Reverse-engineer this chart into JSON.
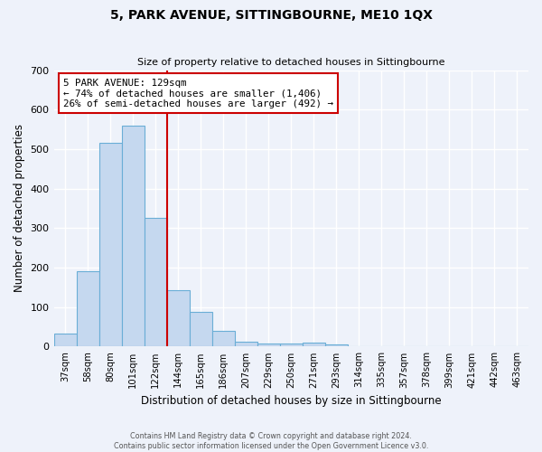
{
  "title": "5, PARK AVENUE, SITTINGBOURNE, ME10 1QX",
  "subtitle": "Size of property relative to detached houses in Sittingbourne",
  "xlabel": "Distribution of detached houses by size in Sittingbourne",
  "ylabel": "Number of detached properties",
  "categories": [
    "37sqm",
    "58sqm",
    "80sqm",
    "101sqm",
    "122sqm",
    "144sqm",
    "165sqm",
    "186sqm",
    "207sqm",
    "229sqm",
    "250sqm",
    "271sqm",
    "293sqm",
    "314sqm",
    "335sqm",
    "357sqm",
    "378sqm",
    "399sqm",
    "421sqm",
    "442sqm",
    "463sqm"
  ],
  "values": [
    32,
    192,
    515,
    560,
    325,
    143,
    87,
    40,
    13,
    7,
    7,
    10,
    5,
    0,
    0,
    0,
    0,
    0,
    0,
    0,
    0
  ],
  "bar_color": "#c5d8ef",
  "bar_edge_color": "#6aaed6",
  "bar_width": 1.0,
  "ylim": [
    0,
    700
  ],
  "yticks": [
    0,
    100,
    200,
    300,
    400,
    500,
    600,
    700
  ],
  "annotation_text": "5 PARK AVENUE: 129sqm\n← 74% of detached houses are smaller (1,406)\n26% of semi-detached houses are larger (492) →",
  "annotation_box_color": "#ffffff",
  "annotation_box_edge": "#cc0000",
  "footer_line1": "Contains HM Land Registry data © Crown copyright and database right 2024.",
  "footer_line2": "Contains public sector information licensed under the Open Government Licence v3.0.",
  "background_color": "#eef2fa",
  "grid_color": "#ffffff",
  "red_line_color": "#cc0000"
}
